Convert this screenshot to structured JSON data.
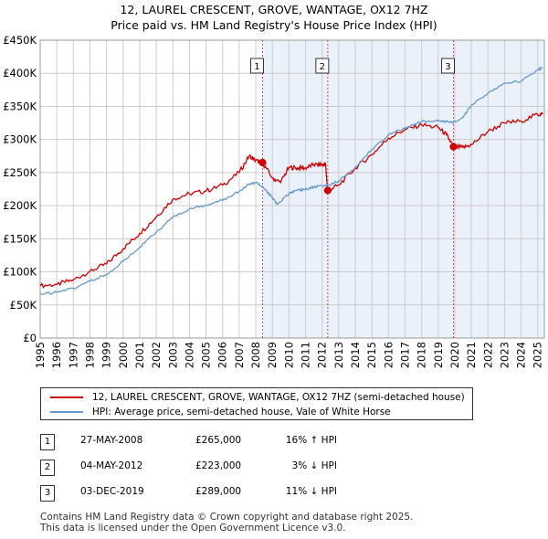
{
  "chart_data": {
    "type": "line",
    "title": "12, LAUREL CRESCENT, GROVE, WANTAGE, OX12 7HZ",
    "subtitle": "Price paid vs. HM Land Registry's House Price Index (HPI)",
    "xlabel": "",
    "ylabel": "",
    "xlim": [
      1995,
      2025.4
    ],
    "ylim": [
      0,
      450000
    ],
    "x_ticks": [
      1995,
      1996,
      1997,
      1998,
      1999,
      2000,
      2001,
      2002,
      2003,
      2004,
      2005,
      2006,
      2007,
      2008,
      2009,
      2010,
      2011,
      2012,
      2013,
      2014,
      2015,
      2016,
      2017,
      2018,
      2019,
      2020,
      2021,
      2022,
      2023,
      2024,
      2025
    ],
    "x_tick_labels": [
      "1995",
      "1996",
      "1997",
      "1998",
      "1999",
      "2000",
      "2001",
      "2002",
      "2003",
      "2004",
      "2005",
      "2006",
      "2007",
      "2008",
      "2009",
      "2010",
      "2011",
      "2012",
      "2013",
      "2014",
      "2015",
      "2016",
      "2017",
      "2018",
      "2019",
      "2020",
      "2021",
      "2022",
      "2023",
      "2024",
      "2025"
    ],
    "y_ticks": [
      0,
      50000,
      100000,
      150000,
      200000,
      250000,
      300000,
      350000,
      400000,
      450000
    ],
    "y_tick_labels": [
      "£0",
      "£50K",
      "£100K",
      "£150K",
      "£200K",
      "£250K",
      "£300K",
      "£350K",
      "£400K",
      "£450K"
    ],
    "grid": true,
    "series": [
      {
        "name": "12, LAUREL CRESCENT, GROVE, WANTAGE, OX12 7HZ (semi-detached house)",
        "color": "#cc0000",
        "x": [
          1995,
          1996,
          1997,
          1998,
          1999,
          2000,
          2001,
          2002,
          2003,
          2004,
          2005,
          2006,
          2007,
          2007.6,
          2008.0,
          2008.41,
          2009.0,
          2009.5,
          2010.0,
          2010.5,
          2011.0,
          2011.5,
          2012.0,
          2012.2,
          2012.34,
          2013.0,
          2014.0,
          2015.0,
          2016.0,
          2017.0,
          2018.0,
          2019.0,
          2019.5,
          2019.92,
          2020.5,
          2021.0,
          2022.0,
          2023.0,
          2024.0,
          2025.0,
          2025.3
        ],
        "y": [
          79000,
          81000,
          88000,
          101000,
          112000,
          135000,
          158000,
          183000,
          210000,
          218000,
          222000,
          231000,
          250000,
          275000,
          268000,
          265000,
          242000,
          235000,
          258000,
          257000,
          257000,
          262000,
          262000,
          263000,
          223000,
          231000,
          257000,
          277000,
          302000,
          315000,
          322000,
          318000,
          307000,
          289000,
          288000,
          292000,
          312000,
          325000,
          328000,
          338000,
          338000
        ]
      },
      {
        "name": "HPI: Average price, semi-detached house, Vale of White Horse",
        "color": "#6699cc",
        "x": [
          1995,
          1996,
          1997,
          1998,
          1999,
          2000,
          2001,
          2002,
          2003,
          2004,
          2005,
          2006,
          2007,
          2007.6,
          2008.0,
          2008.41,
          2009.0,
          2009.3,
          2010.0,
          2010.5,
          2011.0,
          2011.5,
          2012.0,
          2012.34,
          2013.0,
          2014.0,
          2015.0,
          2016.0,
          2017.0,
          2018.0,
          2019.0,
          2019.5,
          2019.92,
          2020.5,
          2021.0,
          2022.0,
          2023.0,
          2024.0,
          2025.0,
          2025.3
        ],
        "y": [
          67000,
          69000,
          75000,
          86000,
          96000,
          116000,
          137000,
          160000,
          183000,
          195000,
          200000,
          208000,
          222000,
          232000,
          235000,
          229000,
          212000,
          202000,
          218000,
          223000,
          225000,
          228000,
          230000,
          231000,
          237000,
          258000,
          285000,
          307000,
          317000,
          327000,
          328000,
          327000,
          326000,
          333000,
          352000,
          370000,
          385000,
          388000,
          405000,
          408000
        ]
      }
    ],
    "sales": [
      {
        "label": "1",
        "x": 2008.41,
        "price": 265000
      },
      {
        "label": "2",
        "x": 2012.34,
        "price": 223000
      },
      {
        "label": "3",
        "x": 2019.92,
        "price": 289000
      }
    ]
  },
  "legend": {
    "property": "12, LAUREL CRESCENT, GROVE, WANTAGE, OX12 7HZ (semi-detached house)",
    "hpi": "HPI: Average price, semi-detached house, Vale of White Horse"
  },
  "sales_table": [
    {
      "num": "1",
      "date": "27-MAY-2008",
      "price": "£265,000",
      "hpi": "16% ↑ HPI"
    },
    {
      "num": "2",
      "date": "04-MAY-2012",
      "price": "£223,000",
      "hpi": "3% ↓ HPI"
    },
    {
      "num": "3",
      "date": "03-DEC-2019",
      "price": "£289,000",
      "hpi": "11% ↓ HPI"
    }
  ],
  "footer": {
    "line1": "Contains HM Land Registry data © Crown copyright and database right 2025.",
    "line2": "This data is licensed under the Open Government Licence v3.0."
  }
}
